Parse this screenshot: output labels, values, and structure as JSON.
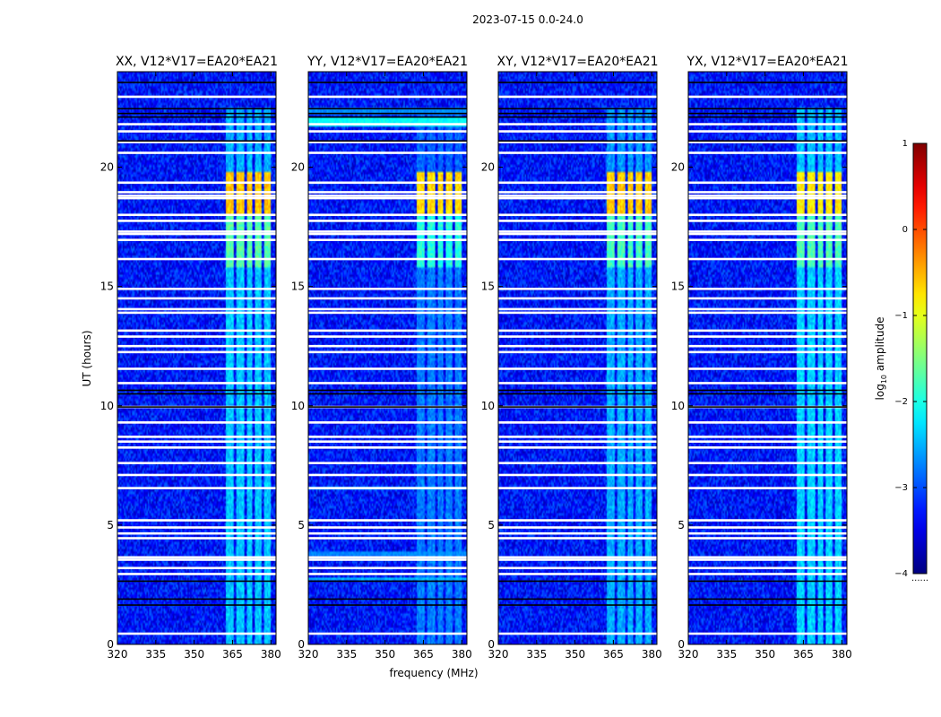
{
  "figure": {
    "suptitle": "2023-07-15 0.0-24.0",
    "xlabel": "frequency (MHz)",
    "ylabel": "UT (hours)",
    "colorbar_label_prefix": "log",
    "colorbar_label_sub": "10",
    "colorbar_label_suffix": " amplitude",
    "colorbar_extra": "......"
  },
  "chart_data": {
    "type": "heatmap",
    "colormap": "jet",
    "xlim": [
      320,
      382
    ],
    "ylim": [
      0,
      24
    ],
    "xticks": [
      320,
      335,
      350,
      365,
      380
    ],
    "yticks": [
      0,
      5,
      10,
      15,
      20
    ],
    "clim": [
      -4,
      1
    ],
    "cbar_ticks": [
      -4,
      -3,
      -2,
      -1,
      0,
      1
    ],
    "cbar_tick_labels": [
      "−4",
      "−3",
      "−2",
      "−1",
      "0",
      "1"
    ],
    "background_level": -3.3,
    "panels": [
      {
        "name": "XX",
        "title": "XX, V12*V17=EA20*EA21",
        "rfi_gain": 1.0,
        "broadband": []
      },
      {
        "name": "YY",
        "title": "YY, V12*V17=EA20*EA21",
        "rfi_gain": 1.15,
        "broadband": [
          {
            "t": 21.9,
            "w": 0.4,
            "level": -2.1
          },
          {
            "t": 22.4,
            "w": 0.3,
            "level": -2.7
          },
          {
            "t": 6.55,
            "w": 0.12,
            "level": -2.3
          },
          {
            "t": 3.8,
            "w": 0.25,
            "level": -2.7
          },
          {
            "t": 2.75,
            "w": 0.15,
            "level": -2.4
          }
        ]
      },
      {
        "name": "XY",
        "title": "XY, V12*V17=EA20*EA21",
        "rfi_gain": 1.05,
        "broadband": []
      },
      {
        "name": "YX",
        "title": "YX, V12*V17=EA20*EA21",
        "rfi_gain": 0.85,
        "broadband": []
      }
    ],
    "rfi_channels_mhz": [
      [
        362.5,
        365.3
      ],
      [
        366.4,
        369.6
      ],
      [
        370.7,
        372.5
      ],
      [
        373.6,
        376.5
      ],
      [
        377.3,
        379.7
      ]
    ],
    "rfi_activity": [
      {
        "start": 18.0,
        "end": 19.8,
        "level": -0.6
      },
      {
        "start": 15.8,
        "end": 18.0,
        "level": -1.7
      },
      {
        "start": 0.0,
        "end": 15.8,
        "level": -2.4
      },
      {
        "start": 19.8,
        "end": 22.5,
        "level": -2.5
      }
    ],
    "flagged_white_ut": [
      0.45,
      2.95,
      3.2,
      3.55,
      3.65,
      4.45,
      4.65,
      4.9,
      5.2,
      6.55,
      7.1,
      7.6,
      8.25,
      8.5,
      8.7,
      9.3,
      9.95,
      10.95,
      11.55,
      12.25,
      12.5,
      12.9,
      13.15,
      13.9,
      14.05,
      14.5,
      14.9,
      16.15,
      16.95,
      17.2,
      17.3,
      17.75,
      18.0,
      18.7,
      18.8,
      18.95,
      19.35,
      20.6,
      21.05,
      21.5,
      21.8,
      22.95
    ],
    "flagged_black_ut": [
      1.65,
      1.9,
      2.65,
      9.95,
      10.5,
      10.65,
      21.1,
      22.1,
      22.25,
      22.45,
      23.55
    ]
  }
}
